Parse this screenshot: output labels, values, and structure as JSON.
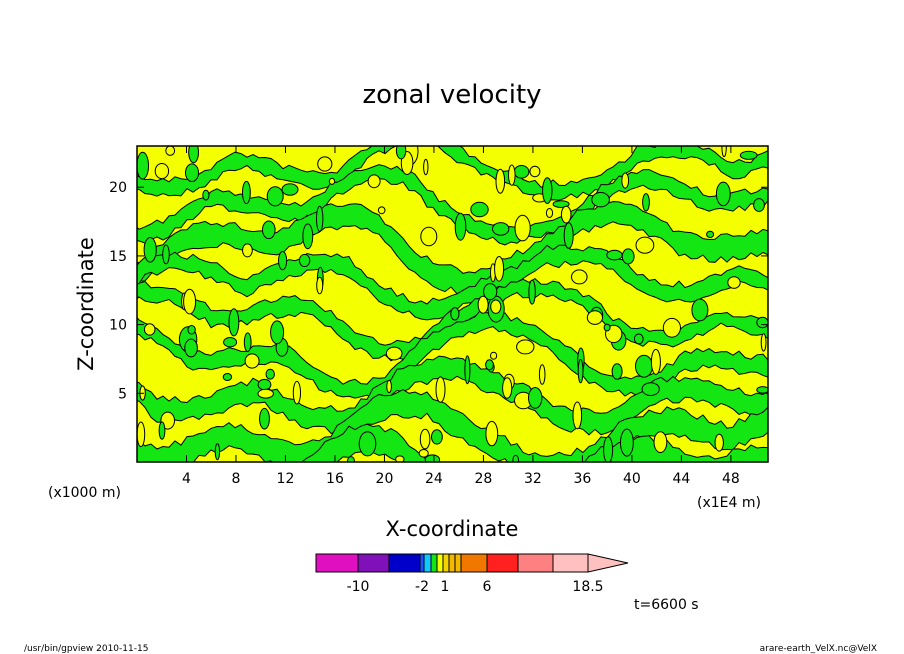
{
  "chart_data": {
    "type": "heatmap",
    "title": "zonal velocity",
    "xlabel": "X-coordinate",
    "ylabel": "Z-coordinate",
    "x_unit_left": "(x1000 m)",
    "x_unit_right": "(x1E4 m)",
    "xlim": [
      0,
      51
    ],
    "ylim": [
      0,
      23
    ],
    "x_ticks": [
      "4",
      "8",
      "12",
      "16",
      "20",
      "24",
      "28",
      "32",
      "36",
      "40",
      "44",
      "48"
    ],
    "y_ticks": [
      "5",
      "10",
      "15",
      "20"
    ],
    "field_colors": {
      "yellow": "#f4ff00",
      "green": "#14e614",
      "contour": "#000000"
    },
    "colorbar": {
      "labels": [
        "-10",
        "-2",
        "1",
        "6",
        "18.5"
      ],
      "colors": [
        "#e010c0",
        "#8010b8",
        "#0000c8",
        "#1a50ff",
        "#10c8ff",
        "#14e614",
        "#f4ff00",
        "#f4d400",
        "#f4b800",
        "#f07800",
        "#ff2020",
        "#ff8080",
        "#ffc0c0"
      ]
    },
    "time_label": "t=6600 s"
  },
  "footer": {
    "left": "/usr/bin/gpview   2010-11-15",
    "right": "arare-earth_VelX.nc@VelX"
  }
}
